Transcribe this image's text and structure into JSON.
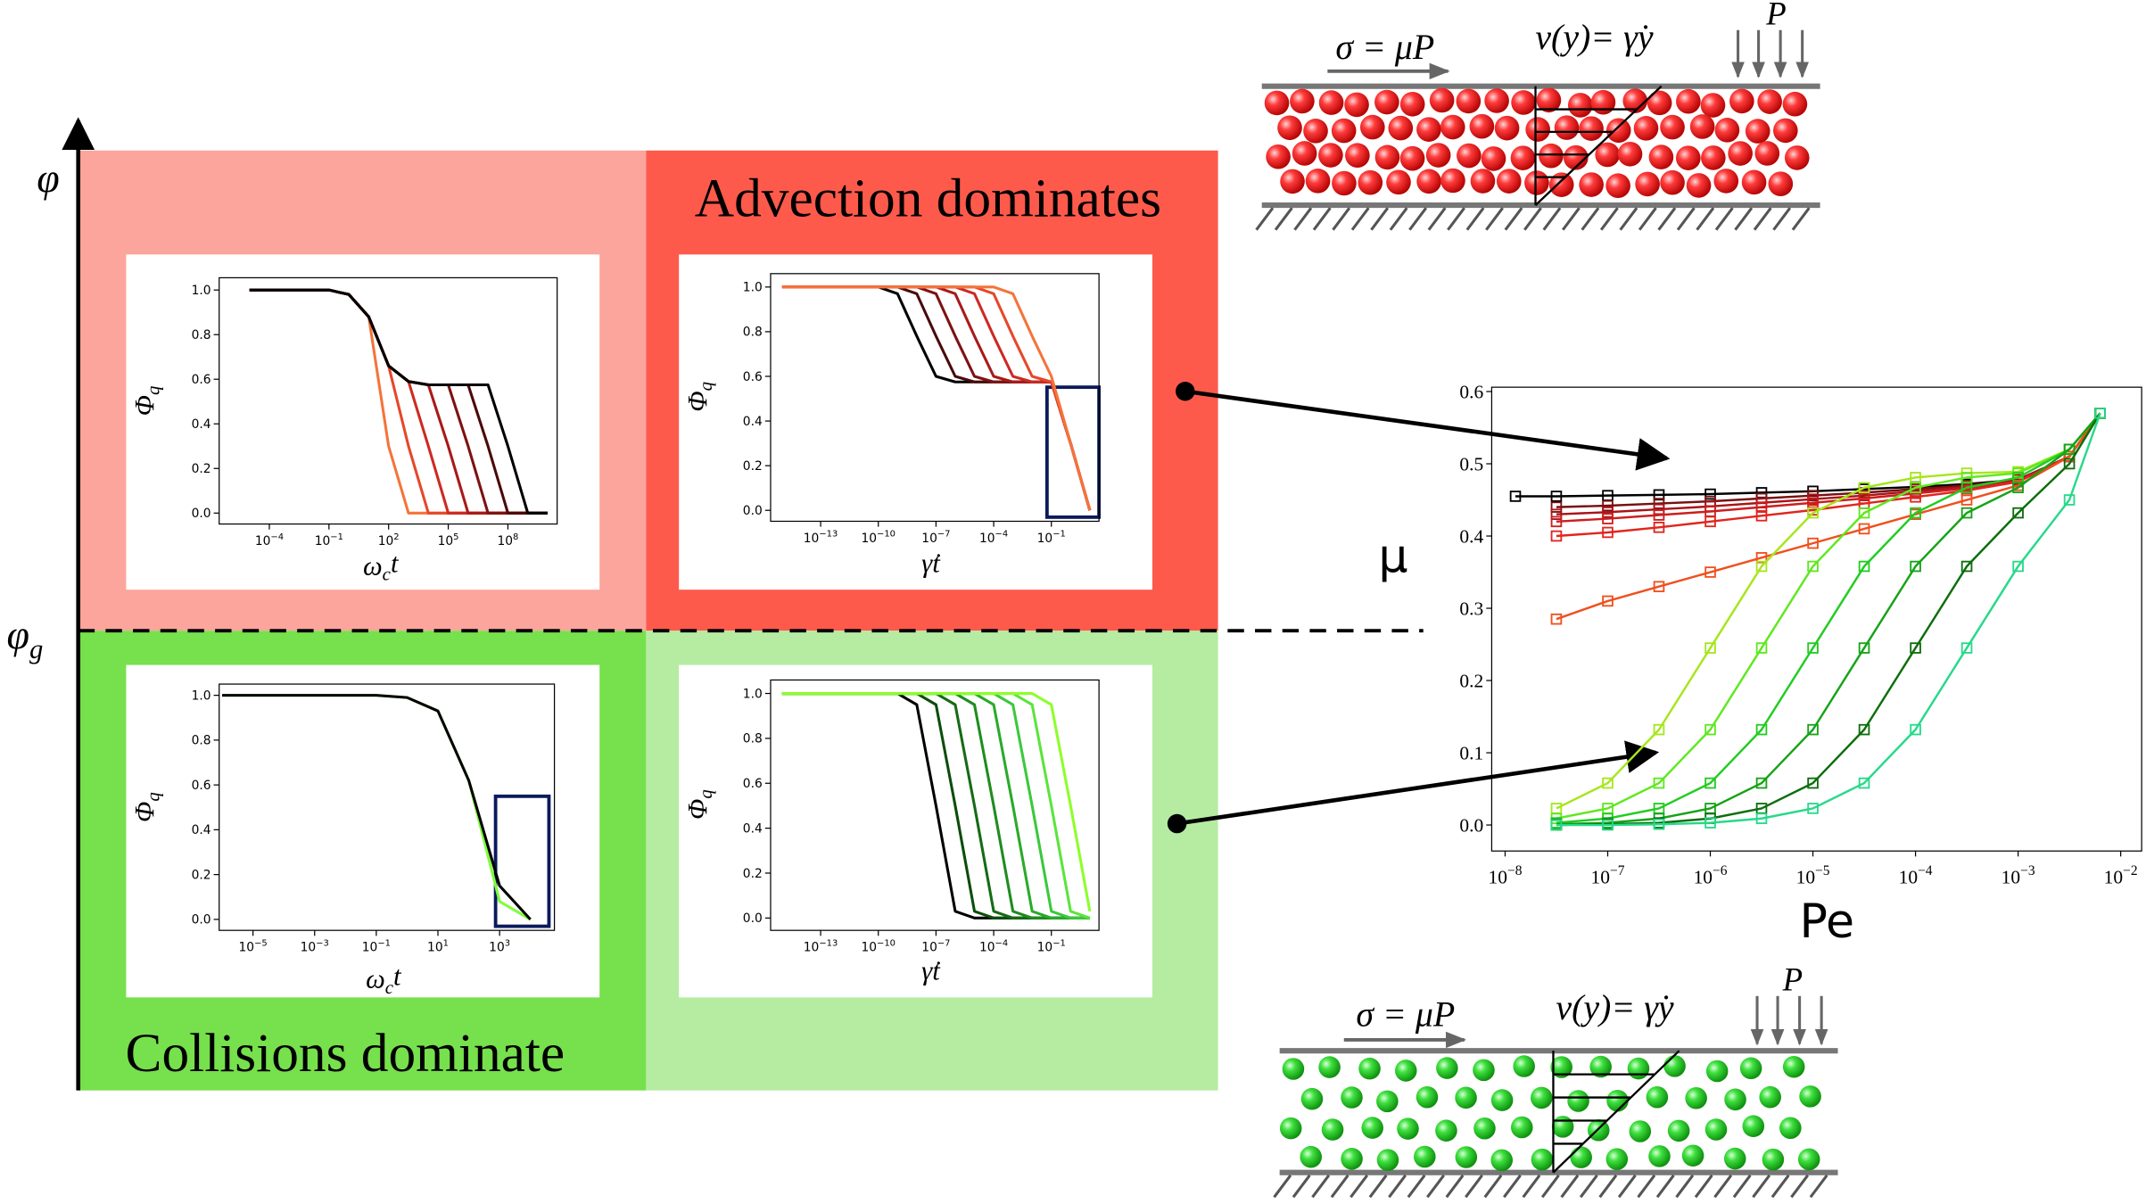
{
  "axis": {
    "phi": "φ",
    "phi_g": {
      "symbol": "φ",
      "subscript": "g"
    }
  },
  "regions": {
    "advection": "Advection dominates",
    "collisions": "Collisions dominate"
  },
  "schematics": [
    {
      "stress": "σ = μP",
      "velocity": "v(y)= γ̇y",
      "pressure": "P"
    },
    {
      "stress": "σ = μP",
      "velocity": "v(y)= γ̇y",
      "pressure": "P"
    }
  ],
  "chart_data": [
    {
      "type": "line",
      "xlabel": {
        "symbol": "ω",
        "subscript": "c",
        "suffix": "t"
      },
      "ylabel": {
        "symbol": "Φ",
        "subscript": "q"
      },
      "xscale": "log",
      "xlim": [
        3e-07,
        30000000000.0
      ],
      "ylim": [
        -0.049,
        1.055
      ],
      "xticks": [
        {
          "value": 0.0001,
          "label": "10−4"
        },
        {
          "value": 0.1,
          "label": "10−1"
        },
        {
          "value": 100,
          "label": "102"
        },
        {
          "value": 100000.0,
          "label": "105"
        },
        {
          "value": 100000000.0,
          "label": "108"
        }
      ],
      "yticks": [
        {
          "value": 0,
          "label": "0.0"
        },
        0.2,
        0.4,
        0.6,
        0.8,
        {
          "value": 1,
          "label": "1.0"
        }
      ],
      "x": [
        1e-05,
        0.0001,
        0.001,
        0.01,
        0.1,
        1,
        10,
        100,
        1000.0,
        10000.0,
        100000.0,
        1000000.0,
        10000000.0,
        100000000.0,
        1000000000.0,
        10000000000.0
      ],
      "series": [
        {
          "color": "#f4743b",
          "values": [
            1,
            1,
            1,
            1,
            1,
            0.98,
            0.88,
            0.3,
            0,
            0,
            0,
            0,
            0,
            0,
            0,
            0
          ]
        },
        {
          "color": "#e5482a",
          "values": [
            1,
            1,
            1,
            1,
            1,
            0.98,
            0.88,
            0.66,
            0.3,
            0,
            0,
            0,
            0,
            0,
            0,
            0
          ]
        },
        {
          "color": "#cc2a22",
          "values": [
            1,
            1,
            1,
            1,
            1,
            0.98,
            0.88,
            0.66,
            0.59,
            0.3,
            0,
            0,
            0,
            0,
            0,
            0
          ]
        },
        {
          "color": "#a81a1a",
          "values": [
            1,
            1,
            1,
            1,
            1,
            0.98,
            0.88,
            0.66,
            0.59,
            0.575,
            0.3,
            0,
            0,
            0,
            0,
            0
          ]
        },
        {
          "color": "#7d1212",
          "values": [
            1,
            1,
            1,
            1,
            1,
            0.98,
            0.88,
            0.66,
            0.59,
            0.575,
            0.575,
            0.3,
            0,
            0,
            0,
            0
          ]
        },
        {
          "color": "#4a0a0a",
          "values": [
            1,
            1,
            1,
            1,
            1,
            0.98,
            0.88,
            0.66,
            0.59,
            0.575,
            0.575,
            0.575,
            0.3,
            0,
            0,
            0
          ]
        },
        {
          "color": "#000000",
          "values": [
            1,
            1,
            1,
            1,
            1,
            0.98,
            0.88,
            0.66,
            0.59,
            0.575,
            0.575,
            0.575,
            0.575,
            0.3,
            0,
            0
          ]
        }
      ]
    },
    {
      "type": "line",
      "xlabel": "γ̇t",
      "ylabel": {
        "symbol": "Φ",
        "subscript": "q"
      },
      "xscale": "log",
      "xlim": [
        2.5e-16,
        30
      ],
      "ylim": [
        -0.049,
        1.06
      ],
      "xticks": [
        {
          "value": 1e-13,
          "label": "10−13"
        },
        {
          "value": 1e-10,
          "label": "10−10"
        },
        {
          "value": 1e-07,
          "label": "10−7"
        },
        {
          "value": 0.0001,
          "label": "10−4"
        },
        {
          "value": 0.1,
          "label": "10−1"
        }
      ],
      "yticks": [
        {
          "value": 0,
          "label": "0.0"
        },
        0.2,
        0.4,
        0.6,
        0.8,
        {
          "value": 1,
          "label": "1.0"
        }
      ],
      "x": [
        1e-15,
        1e-14,
        1e-13,
        1e-12,
        1e-11,
        1e-10,
        1e-09,
        1e-08,
        1e-07,
        1e-06,
        1e-05,
        0.0001,
        0.001,
        0.01,
        0.1,
        1,
        10
      ],
      "series": [
        {
          "color": "#000000",
          "values": [
            1,
            1,
            1,
            1,
            1,
            1,
            0.97,
            0.78,
            0.6,
            0.575,
            0.575,
            0.575,
            0.575,
            0.575,
            0.575,
            0.3,
            0
          ]
        },
        {
          "color": "#4a0a0a",
          "values": [
            1,
            1,
            1,
            1,
            1,
            1,
            1,
            0.97,
            0.78,
            0.6,
            0.575,
            0.575,
            0.575,
            0.575,
            0.575,
            0.3,
            0
          ]
        },
        {
          "color": "#7d1212",
          "values": [
            1,
            1,
            1,
            1,
            1,
            1,
            1,
            1,
            0.97,
            0.78,
            0.6,
            0.575,
            0.575,
            0.575,
            0.575,
            0.3,
            0
          ]
        },
        {
          "color": "#a81a1a",
          "values": [
            1,
            1,
            1,
            1,
            1,
            1,
            1,
            1,
            1,
            0.97,
            0.78,
            0.6,
            0.575,
            0.575,
            0.575,
            0.3,
            0
          ]
        },
        {
          "color": "#cc2a22",
          "values": [
            1,
            1,
            1,
            1,
            1,
            1,
            1,
            1,
            1,
            1,
            0.97,
            0.78,
            0.6,
            0.575,
            0.575,
            0.3,
            0
          ]
        },
        {
          "color": "#e5482a",
          "values": [
            1,
            1,
            1,
            1,
            1,
            1,
            1,
            1,
            1,
            1,
            1,
            0.97,
            0.78,
            0.6,
            0.575,
            0.3,
            0
          ]
        },
        {
          "color": "#f4743b",
          "values": [
            1,
            1,
            1,
            1,
            1,
            1,
            1,
            1,
            1,
            1,
            1,
            1,
            0.97,
            0.78,
            0.6,
            0.3,
            0
          ]
        }
      ]
    },
    {
      "type": "line",
      "xlabel": {
        "symbol": "ω",
        "subscript": "c",
        "suffix": "t"
      },
      "ylabel": {
        "symbol": "Φ",
        "subscript": "q"
      },
      "xscale": "log",
      "xlim": [
        8e-07,
        60000.0
      ],
      "ylim": [
        -0.049,
        1.05
      ],
      "xticks": [
        {
          "value": 1e-05,
          "label": "10−5"
        },
        {
          "value": 0.001,
          "label": "10−3"
        },
        {
          "value": 0.1,
          "label": "10−1"
        },
        {
          "value": 10,
          "label": "101"
        },
        {
          "value": 1000,
          "label": "103"
        }
      ],
      "yticks": [
        {
          "value": 0,
          "label": "0.0"
        },
        0.2,
        0.4,
        0.6,
        0.8,
        {
          "value": 1,
          "label": "1.0"
        }
      ],
      "x": [
        1e-06,
        1e-05,
        0.0001,
        0.001,
        0.01,
        0.1,
        1,
        10,
        100,
        1000,
        10000.0
      ],
      "series": [
        {
          "color": "#7dff3a",
          "values": [
            1,
            1,
            1,
            1,
            1,
            1,
            0.99,
            0.93,
            0.62,
            0.08,
            0
          ]
        },
        {
          "color": "#000000",
          "values": [
            1,
            1,
            1,
            1,
            1,
            1,
            0.99,
            0.93,
            0.62,
            0.15,
            0
          ]
        }
      ]
    },
    {
      "type": "line",
      "xlabel": "γ̇t",
      "ylabel": {
        "symbol": "Φ",
        "subscript": "q"
      },
      "xscale": "log",
      "xlim": [
        2.5e-16,
        30
      ],
      "ylim": [
        -0.055,
        1.06
      ],
      "xticks": [
        {
          "value": 1e-13,
          "label": "10−13"
        },
        {
          "value": 1e-10,
          "label": "10−10"
        },
        {
          "value": 1e-07,
          "label": "10−7"
        },
        {
          "value": 0.0001,
          "label": "10−4"
        },
        {
          "value": 0.1,
          "label": "10−1"
        }
      ],
      "yticks": [
        {
          "value": 0,
          "label": "0.0"
        },
        0.2,
        0.4,
        0.6,
        0.8,
        {
          "value": 1,
          "label": "1.0"
        }
      ],
      "x": [
        1e-15,
        1e-14,
        1e-13,
        1e-12,
        1e-11,
        1e-10,
        1e-09,
        1e-08,
        1e-07,
        1e-06,
        1e-05,
        0.0001,
        0.001,
        0.01,
        0.1,
        1,
        10
      ],
      "series": [
        {
          "color": "#000000",
          "values": [
            1,
            1,
            1,
            1,
            1,
            1,
            1,
            0.95,
            0.5,
            0.03,
            0,
            0,
            0,
            0,
            0,
            0,
            0
          ]
        },
        {
          "color": "#0b4d0b",
          "values": [
            1,
            1,
            1,
            1,
            1,
            1,
            1,
            1,
            0.95,
            0.5,
            0.03,
            0,
            0,
            0,
            0,
            0,
            0
          ]
        },
        {
          "color": "#156b15",
          "values": [
            1,
            1,
            1,
            1,
            1,
            1,
            1,
            1,
            1,
            0.95,
            0.5,
            0.03,
            0,
            0,
            0,
            0,
            0
          ]
        },
        {
          "color": "#1f8c1f",
          "values": [
            1,
            1,
            1,
            1,
            1,
            1,
            1,
            1,
            1,
            1,
            0.95,
            0.5,
            0.03,
            0,
            0,
            0,
            0
          ]
        },
        {
          "color": "#2aaa2a",
          "values": [
            1,
            1,
            1,
            1,
            1,
            1,
            1,
            1,
            1,
            1,
            1,
            0.95,
            0.5,
            0.03,
            0,
            0,
            0
          ]
        },
        {
          "color": "#3cc83c",
          "values": [
            1,
            1,
            1,
            1,
            1,
            1,
            1,
            1,
            1,
            1,
            1,
            1,
            0.95,
            0.5,
            0.03,
            0,
            0
          ]
        },
        {
          "color": "#5ce43c",
          "values": [
            1,
            1,
            1,
            1,
            1,
            1,
            1,
            1,
            1,
            1,
            1,
            1,
            1,
            0.95,
            0.5,
            0.03,
            0
          ]
        },
        {
          "color": "#8cff2a",
          "values": [
            1,
            1,
            1,
            1,
            1,
            1,
            1,
            1,
            1,
            1,
            1,
            1,
            1,
            1,
            0.95,
            0.5,
            0.03
          ]
        }
      ]
    },
    {
      "type": "line",
      "xlabel": "Pe",
      "ylabel": "μ",
      "xscale": "log",
      "marker": "square",
      "xlim": [
        7.4e-09,
        0.016
      ],
      "ylim": [
        -0.036,
        0.606
      ],
      "xticks": [
        {
          "value": 1e-08,
          "label": "10−8"
        },
        {
          "value": 1e-07,
          "label": "10−7"
        },
        {
          "value": 1e-06,
          "label": "10−6"
        },
        {
          "value": 1e-05,
          "label": "10−5"
        },
        {
          "value": 0.0001,
          "label": "10−4"
        },
        {
          "value": 0.001,
          "label": "10−3"
        },
        {
          "value": 0.01,
          "label": "10−2"
        }
      ],
      "yticks": [
        {
          "value": 0,
          "label": "0.0"
        },
        0.1,
        0.2,
        0.3,
        0.4,
        0.5,
        0.6
      ],
      "x": [
        1.26e-08,
        3.16e-08,
        1e-07,
        3.16e-07,
        1e-06,
        3.16e-06,
        1e-05,
        3.16e-05,
        0.0001,
        0.000316,
        0.001,
        0.00316,
        0.00631
      ],
      "series": [
        {
          "color": "#000000",
          "values": [
            0.455,
            0.455,
            0.456,
            0.457,
            0.458,
            0.46,
            0.462,
            0.465,
            0.468,
            0.472,
            0.478,
            0.51,
            0.57
          ]
        },
        {
          "color": "#7a0f10",
          "values": [
            null,
            0.44,
            0.442,
            0.445,
            0.448,
            0.452,
            0.456,
            0.46,
            0.465,
            0.47,
            0.478,
            0.51,
            0.57
          ]
        },
        {
          "color": "#a8141a",
          "values": [
            null,
            0.43,
            0.433,
            0.437,
            0.441,
            0.446,
            0.451,
            0.456,
            0.462,
            0.468,
            0.477,
            0.51,
            0.57
          ]
        },
        {
          "color": "#cc1e1e",
          "values": [
            null,
            0.42,
            0.424,
            0.429,
            0.434,
            0.44,
            0.446,
            0.452,
            0.459,
            0.466,
            0.476,
            0.51,
            0.57
          ]
        },
        {
          "color": "#e0261f",
          "values": [
            null,
            0.4,
            0.405,
            0.412,
            0.42,
            0.428,
            0.436,
            0.445,
            0.454,
            0.463,
            0.475,
            0.51,
            0.57
          ]
        },
        {
          "color": "#f0501e",
          "values": [
            null,
            0.285,
            0.31,
            0.33,
            0.35,
            0.37,
            0.39,
            0.41,
            0.43,
            0.45,
            0.47,
            0.51,
            0.57
          ]
        },
        {
          "color": "#a6e61c",
          "values": [
            null,
            0.023,
            0.058,
            0.132,
            0.245,
            0.358,
            0.432,
            0.467,
            0.481,
            0.487,
            0.489,
            0.52,
            0.57
          ]
        },
        {
          "color": "#5fe81f",
          "values": [
            null,
            0.009,
            0.023,
            0.058,
            0.132,
            0.245,
            0.358,
            0.432,
            0.467,
            0.481,
            0.487,
            0.52,
            0.57
          ]
        },
        {
          "color": "#22cc22",
          "values": [
            null,
            0.003,
            0.009,
            0.023,
            0.058,
            0.132,
            0.245,
            0.358,
            0.432,
            0.467,
            0.481,
            0.52,
            0.57
          ]
        },
        {
          "color": "#17a317",
          "values": [
            null,
            0.001,
            0.003,
            0.009,
            0.023,
            0.058,
            0.132,
            0.245,
            0.358,
            0.432,
            0.467,
            0.52,
            0.57
          ]
        },
        {
          "color": "#0d6e0d",
          "values": [
            null,
            0,
            0.001,
            0.003,
            0.009,
            0.023,
            0.058,
            0.132,
            0.245,
            0.358,
            0.432,
            0.5,
            0.57
          ]
        },
        {
          "color": "#27d98a",
          "values": [
            null,
            0,
            0,
            0.001,
            0.003,
            0.009,
            0.023,
            0.058,
            0.132,
            0.245,
            0.358,
            0.45,
            0.57
          ]
        }
      ]
    }
  ]
}
